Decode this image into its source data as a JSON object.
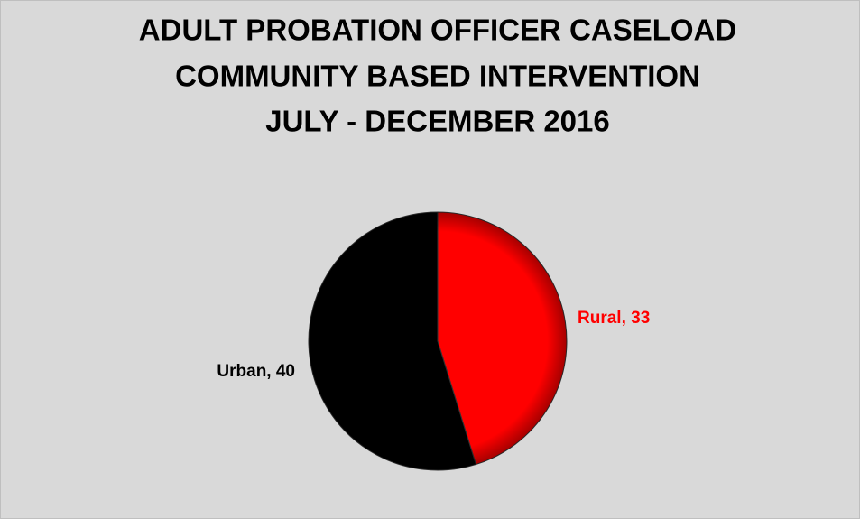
{
  "chart_data": {
    "type": "pie",
    "title": [
      "ADULT PROBATION OFFICER CASELOAD",
      "COMMUNITY BASED INTERVENTION",
      "JULY - DECEMBER 2016"
    ],
    "categories": [
      "Rural",
      "Urban"
    ],
    "values": [
      33,
      40
    ],
    "value_labels": [
      "Rural, 33",
      "Urban, 40"
    ],
    "colors": [
      "#ff0000",
      "#000000"
    ]
  }
}
